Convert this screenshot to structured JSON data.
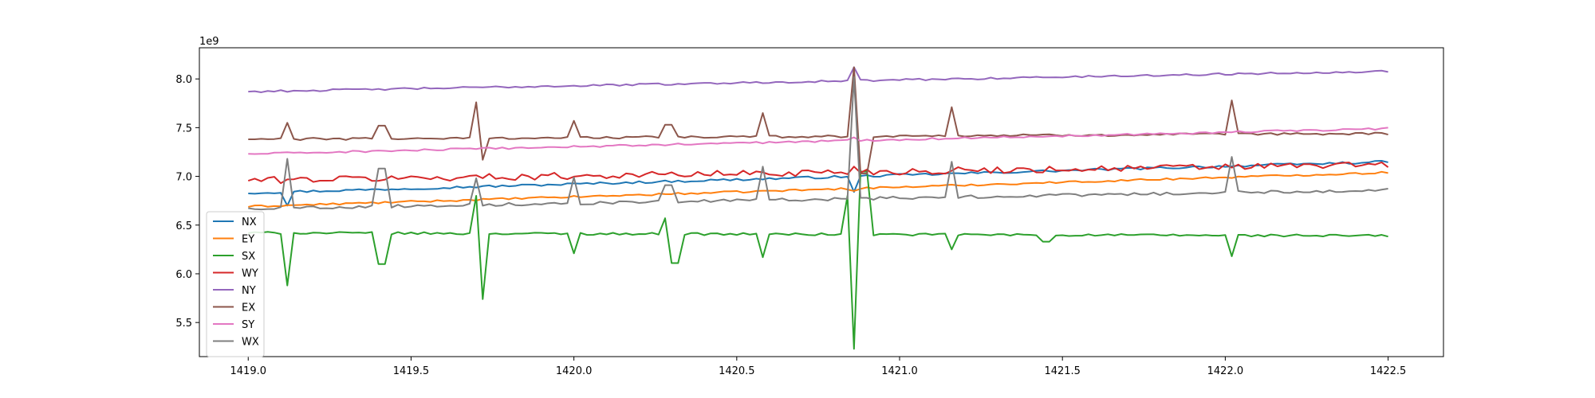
{
  "chart_data": {
    "type": "line",
    "title": "",
    "xlabel": "",
    "ylabel": "",
    "offset_label": "1e9",
    "xlim": [
      1418.85,
      1422.67
    ],
    "ylim": [
      5.15,
      8.32
    ],
    "x_ticks": [
      1419.0,
      1419.5,
      1420.0,
      1420.5,
      1421.0,
      1421.5,
      1422.0,
      1422.5
    ],
    "x_tick_labels": [
      "1419.0",
      "1419.5",
      "1420.0",
      "1420.5",
      "1421.0",
      "1421.5",
      "1422.0",
      "1422.5"
    ],
    "y_ticks": [
      5.5,
      6.0,
      6.5,
      7.0,
      7.5,
      8.0
    ],
    "y_tick_labels": [
      "5.5",
      "6.0",
      "6.5",
      "7.0",
      "7.5",
      "8.0"
    ],
    "grid": false,
    "legend_position": "lower-left",
    "x": {
      "start": 1419.0,
      "end": 1422.5,
      "count": 176
    },
    "series": [
      {
        "name": "NX",
        "color": "#1f77b4",
        "start": 6.83,
        "end": 7.15,
        "noise": 0.012,
        "baseline": 6.83,
        "spikes": [
          [
            1419.12,
            6.7
          ],
          [
            1420.87,
            6.84
          ]
        ]
      },
      {
        "name": "EY",
        "color": "#ff7f0e",
        "start": 6.69,
        "end": 7.04,
        "noise": 0.01,
        "baseline": 6.69,
        "spikes": [
          [
            1420.87,
            6.85
          ]
        ]
      },
      {
        "name": "SX",
        "color": "#2ca02c",
        "start": 6.42,
        "end": 6.39,
        "noise": 0.012,
        "baseline": 6.42,
        "spikes": [
          [
            1419.12,
            5.88
          ],
          [
            1419.41,
            6.1
          ],
          [
            1419.7,
            6.8
          ],
          [
            1419.72,
            5.74
          ],
          [
            1420.0,
            6.21
          ],
          [
            1420.29,
            6.57
          ],
          [
            1420.31,
            6.11
          ],
          [
            1420.58,
            6.17
          ],
          [
            1420.85,
            6.8
          ],
          [
            1420.87,
            5.23
          ],
          [
            1420.89,
            7.05
          ],
          [
            1421.16,
            6.25
          ],
          [
            1421.45,
            6.33
          ],
          [
            1422.02,
            6.18
          ]
        ]
      },
      {
        "name": "WY",
        "color": "#d62728",
        "start": 6.96,
        "end": 7.12,
        "noise": 0.035,
        "baseline": 6.96,
        "spikes": [
          [
            1420.87,
            7.1
          ]
        ]
      },
      {
        "name": "NY",
        "color": "#9467bd",
        "start": 7.87,
        "end": 8.08,
        "noise": 0.01,
        "baseline": 7.87,
        "spikes": [
          [
            1420.87,
            8.12
          ]
        ]
      },
      {
        "name": "EX",
        "color": "#8c564b",
        "start": 7.38,
        "end": 7.44,
        "noise": 0.012,
        "baseline": 7.38,
        "spikes": [
          [
            1419.12,
            7.55
          ],
          [
            1419.41,
            7.52
          ],
          [
            1419.7,
            7.76
          ],
          [
            1419.72,
            7.17
          ],
          [
            1420.0,
            7.57
          ],
          [
            1420.29,
            7.53
          ],
          [
            1420.58,
            7.65
          ],
          [
            1420.87,
            8.12
          ],
          [
            1420.89,
            7.03
          ],
          [
            1421.16,
            7.71
          ],
          [
            1422.02,
            7.78
          ]
        ]
      },
      {
        "name": "SY",
        "color": "#e377c2",
        "start": 7.23,
        "end": 7.49,
        "noise": 0.01,
        "baseline": 7.23,
        "spikes": [
          [
            1420.87,
            7.4
          ]
        ]
      },
      {
        "name": "WX",
        "color": "#7f7f7f",
        "start": 6.67,
        "end": 6.86,
        "noise": 0.015,
        "baseline": 6.67,
        "spikes": [
          [
            1419.12,
            7.18
          ],
          [
            1419.14,
            6.68
          ],
          [
            1419.41,
            7.08
          ],
          [
            1419.7,
            6.98
          ],
          [
            1420.0,
            6.99
          ],
          [
            1420.29,
            6.91
          ],
          [
            1420.58,
            7.1
          ],
          [
            1420.87,
            8.02
          ],
          [
            1420.89,
            6.78
          ],
          [
            1421.16,
            7.15
          ],
          [
            1422.02,
            7.2
          ]
        ]
      }
    ]
  }
}
